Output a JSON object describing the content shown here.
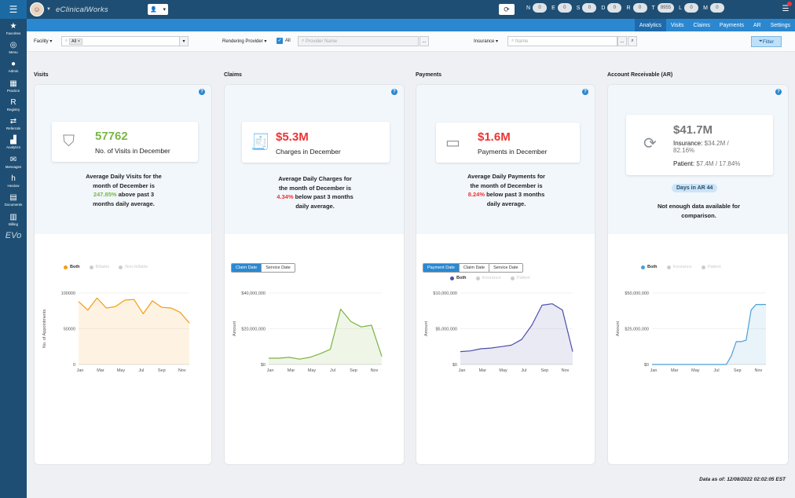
{
  "topbar": {
    "brand": "eClinicalWorks",
    "counters": [
      {
        "label": "N",
        "value": "0"
      },
      {
        "label": "E",
        "value": "0"
      },
      {
        "label": "S",
        "value": "0"
      },
      {
        "label": "D",
        "value": "0"
      },
      {
        "label": "R",
        "value": "0"
      },
      {
        "label": "T",
        "value": "8955"
      },
      {
        "label": "L",
        "value": "0"
      },
      {
        "label": "M",
        "value": "0"
      }
    ]
  },
  "subnav": {
    "tabs": [
      "Analytics",
      "Visits",
      "Claims",
      "Payments",
      "AR",
      "Settings"
    ],
    "active": "Analytics"
  },
  "sidebar": {
    "items": [
      {
        "label": "Favorites",
        "icon": "★"
      },
      {
        "label": "Menu",
        "icon": "◎"
      },
      {
        "label": "Admin",
        "icon": "●"
      },
      {
        "label": "Practice",
        "icon": "▦"
      },
      {
        "label": "Registry",
        "icon": "R"
      },
      {
        "label": "Referrals",
        "icon": "⇄"
      },
      {
        "label": "Analytics",
        "icon": "▟"
      },
      {
        "label": "Messages",
        "icon": "✉"
      },
      {
        "label": "Healow",
        "icon": "h"
      },
      {
        "label": "Documents",
        "icon": "▤"
      },
      {
        "label": "Billing",
        "icon": "▥"
      }
    ],
    "footer": "EVo"
  },
  "filters": {
    "facility_label": "Facility",
    "facility_tag": "All",
    "rendering_label": "Rendering Provider",
    "rendering_all": "All",
    "provider_placeholder": "Provider Name",
    "insurance_label": "Insurance",
    "insurance_placeholder": "Name",
    "filter_button": "Filter"
  },
  "visits": {
    "section": "Visits",
    "value": "57762",
    "sub": "No. of Visits in December",
    "desc_line1": "Average Daily Visits for the",
    "desc_line2": "month of December is",
    "pct": "247.85%",
    "desc_line3": " above past 3",
    "desc_line4": "months daily average.",
    "legend": [
      "Both",
      "Billable",
      "Non-billable"
    ],
    "ylabel": "No. of Appointments"
  },
  "claims": {
    "section": "Claims",
    "value": "$5.3M",
    "sub": "Charges in December",
    "desc_line1": "Average Daily Charges for",
    "desc_line2": "the month of December is",
    "pct": "4.34%",
    "desc_line3": " below past 3 months",
    "desc_line4": "daily average.",
    "toggle": [
      "Claim Date",
      "Service Date"
    ],
    "ylabel": "Amount"
  },
  "payments": {
    "section": "Payments",
    "value": "$1.6M",
    "sub": "Payments in December",
    "desc_line1": "Average Daily Payments for",
    "desc_line2": "the month of December is",
    "pct": "8.24%",
    "desc_line3": " below past 3 months",
    "desc_line4": "daily average.",
    "toggle": [
      "Payment Date",
      "Claim Date",
      "Service Date"
    ],
    "legend": [
      "Both",
      "Insurance",
      "Patient"
    ],
    "ylabel": "Amount"
  },
  "ar": {
    "section": "Account Receivable (AR)",
    "value": "$41.7M",
    "insurance_label": "Insurance: ",
    "insurance_value": "$34.2M /",
    "insurance_pct": "82.16%",
    "patient_label": "Patient: ",
    "patient_value": "$7.4M / 17.84%",
    "days_badge": "Days in AR 44",
    "desc_line1": "Not enough data available for",
    "desc_line2": "comparison.",
    "legend": [
      "Both",
      "Insurance",
      "Patient"
    ],
    "ylabel": "Amount"
  },
  "colors": {
    "visits": "#f39c12",
    "claims": "#7cb342",
    "payments": "#4a4fa8",
    "ar": "#4a9fd8"
  },
  "chart_data": [
    {
      "type": "area",
      "series": [
        {
          "name": "Both",
          "values": [
            88000,
            76000,
            93000,
            79000,
            81000,
            90000,
            91000,
            71000,
            89000,
            80000,
            79000,
            73000,
            58000
          ]
        }
      ],
      "x": [
        "Jan",
        "",
        "Mar",
        "",
        "May",
        "",
        "Jul",
        "",
        "Sep",
        "",
        "Nov",
        "",
        ""
      ],
      "xticks": [
        "Jan",
        "Mar",
        "May",
        "Jul",
        "Sep",
        "Nov"
      ],
      "yticks": [
        "100000",
        "50000",
        "0"
      ],
      "ylim": [
        0,
        100000
      ],
      "ylabel": "No. of Appointments"
    },
    {
      "type": "area",
      "series": [
        {
          "name": "Claims",
          "values": [
            3500000,
            3500000,
            4000000,
            3000000,
            4000000,
            6000000,
            8500000,
            31000000,
            24000000,
            21000000,
            22000000,
            4500000
          ]
        }
      ],
      "xticks": [
        "Jan",
        "Mar",
        "May",
        "Jul",
        "Sep",
        "Nov"
      ],
      "yticks": [
        "$40,000,000",
        "$20,000,000",
        "$0"
      ],
      "ylim": [
        0,
        40000000
      ],
      "ylabel": "Amount"
    },
    {
      "type": "area",
      "series": [
        {
          "name": "Both",
          "values": [
            1800000,
            1900000,
            2200000,
            2300000,
            2500000,
            2700000,
            3500000,
            5500000,
            8300000,
            8500000,
            7600000,
            1800000
          ]
        }
      ],
      "xticks": [
        "Jan",
        "Mar",
        "May",
        "Jul",
        "Sep",
        "Nov"
      ],
      "yticks": [
        "$10,000,000",
        "$5,000,000",
        "$0"
      ],
      "ylim": [
        0,
        10000000
      ],
      "ylabel": "Amount"
    },
    {
      "type": "area",
      "series": [
        {
          "name": "Both",
          "values": [
            0,
            0,
            0,
            0,
            0,
            0,
            0,
            0,
            0,
            0,
            0,
            0,
            0,
            0,
            0,
            0,
            6000000,
            16000000,
            16000000,
            17000000,
            38000000,
            42000000,
            42000000,
            42000000
          ]
        }
      ],
      "xticks": [
        "Jan",
        "Mar",
        "May",
        "Jul",
        "Sep",
        "Nov"
      ],
      "yticks": [
        "$50,000,000",
        "$25,000,000",
        "$0"
      ],
      "ylim": [
        0,
        50000000
      ],
      "ylabel": "Amount"
    }
  ],
  "footer": {
    "as_of": "Data as of: 12/08/2022 02:02:05 EST"
  }
}
